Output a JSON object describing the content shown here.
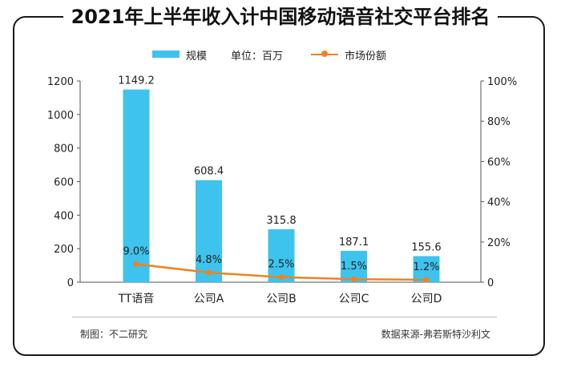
{
  "title": "2021年上半年收入计中国移动语音社交平台排名",
  "legend": {
    "bar_label": "规模",
    "unit": "单位：百万",
    "line_label": "市场份额"
  },
  "footer": {
    "left": "制图：不二研究",
    "right": "数据来源-弗若斯特沙利文"
  },
  "colors": {
    "bar": "#3ec3ee",
    "line": "#f0821e"
  },
  "chart_data": {
    "type": "bar",
    "categories": [
      "TT语音",
      "公司A",
      "公司B",
      "公司C",
      "公司D"
    ],
    "series": [
      {
        "name": "规模",
        "type": "bar",
        "axis": "left",
        "values": [
          1149.2,
          608.4,
          315.8,
          187.1,
          155.6
        ],
        "labels": [
          "1149.2",
          "608.4",
          "315.8",
          "187.1",
          "155.6"
        ]
      },
      {
        "name": "市场份额",
        "type": "line",
        "axis": "right",
        "values": [
          9.0,
          4.8,
          2.5,
          1.5,
          1.2
        ],
        "labels": [
          "9.0%",
          "4.8%",
          "2.5%",
          "1.5%",
          "1.2%"
        ]
      }
    ],
    "y_left": {
      "lim": [
        0,
        1200
      ],
      "ticks": [
        "0",
        "200",
        "400",
        "600",
        "800",
        "1000",
        "1200"
      ]
    },
    "y_right": {
      "lim": [
        0,
        100
      ],
      "ticks": [
        "0",
        "20%",
        "40%",
        "60%",
        "80%",
        "100%"
      ]
    },
    "grid": false
  }
}
